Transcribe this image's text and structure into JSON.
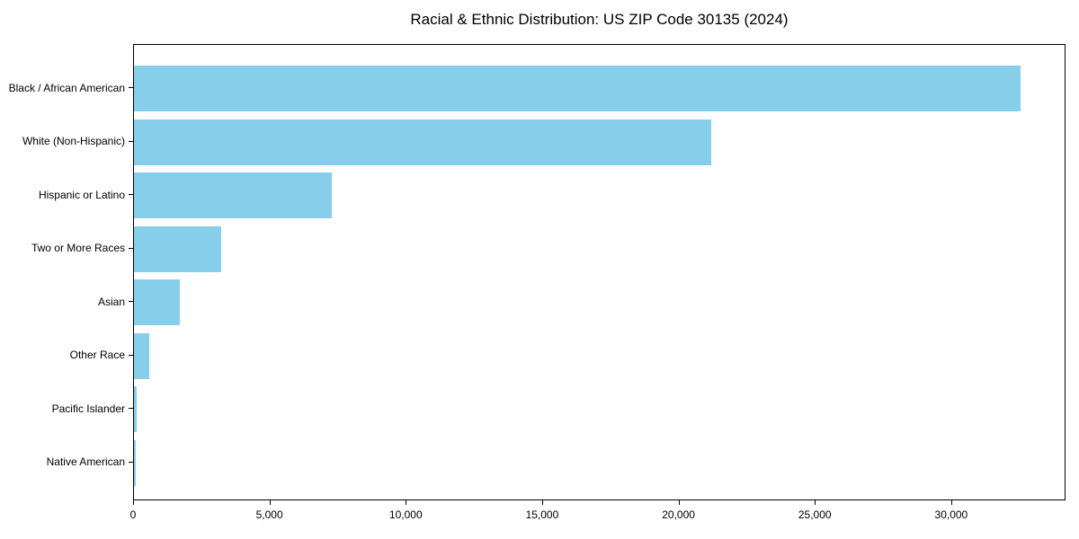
{
  "chart_data": {
    "type": "bar",
    "orientation": "horizontal",
    "title": "Racial & Ethnic Distribution: US ZIP Code 30135 (2024)",
    "categories": [
      "Black / African American",
      "White (Non-Hispanic)",
      "Hispanic or Latino",
      "Two or More Races",
      "Asian",
      "Other Race",
      "Pacific Islander",
      "Native American"
    ],
    "values": [
      32500,
      21170,
      7250,
      3190,
      1680,
      550,
      110,
      70
    ],
    "bar_color": "#87CEEB",
    "xlabel": "",
    "ylabel": "",
    "xlim": [
      0,
      34125
    ],
    "xticks": [
      0,
      5000,
      10000,
      15000,
      20000,
      25000,
      30000
    ],
    "xtick_labels": [
      "0",
      "5,000",
      "10,000",
      "15,000",
      "20,000",
      "25,000",
      "30,000"
    ],
    "grid": false,
    "legend": "none",
    "axis_color": "#000000",
    "background_color": "#ffffff"
  }
}
